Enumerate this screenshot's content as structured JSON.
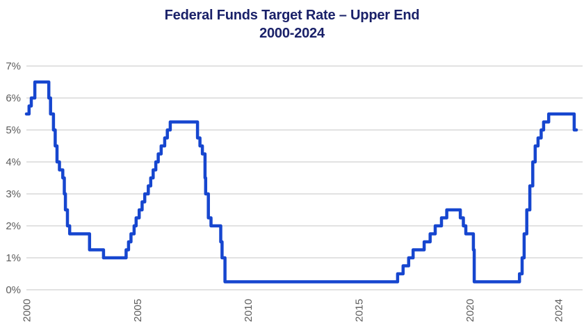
{
  "page": {
    "background": "#ffffff"
  },
  "title": {
    "line1": "Federal Funds Target Rate – Upper End",
    "line2": "2000-2024",
    "color": "#1a2169"
  },
  "chart_data": {
    "type": "line",
    "style": "step-after",
    "title": "Federal Funds Target Rate – Upper End",
    "subtitle": "2000-2024",
    "series_name": "Federal Funds Target Rate (Upper End, %)",
    "line_color": "#1646cf",
    "gridline_color": "#d9d9d9",
    "tick_label_color": "#5c5c5c",
    "grid": true,
    "legend": "none",
    "x_ticks": [
      2000,
      2005,
      2010,
      2015,
      2020,
      2024
    ],
    "y_ticks": [
      "0%",
      "1%",
      "2%",
      "3%",
      "4%",
      "5%",
      "6%",
      "7%"
    ],
    "x_range": [
      2000,
      2025.1
    ],
    "y_range": [
      0,
      7
    ],
    "x_end": 2024.82,
    "points": [
      [
        2000.0,
        5.5
      ],
      [
        2000.12,
        5.75
      ],
      [
        2000.22,
        6.0
      ],
      [
        2000.38,
        6.5
      ],
      [
        2001.01,
        6.0
      ],
      [
        2001.09,
        5.5
      ],
      [
        2001.22,
        5.0
      ],
      [
        2001.3,
        4.5
      ],
      [
        2001.38,
        4.0
      ],
      [
        2001.49,
        3.75
      ],
      [
        2001.64,
        3.5
      ],
      [
        2001.71,
        3.0
      ],
      [
        2001.76,
        2.5
      ],
      [
        2001.85,
        2.0
      ],
      [
        2001.95,
        1.75
      ],
      [
        2002.85,
        1.25
      ],
      [
        2003.48,
        1.0
      ],
      [
        2004.5,
        1.25
      ],
      [
        2004.61,
        1.5
      ],
      [
        2004.72,
        1.75
      ],
      [
        2004.86,
        2.0
      ],
      [
        2004.95,
        2.25
      ],
      [
        2005.09,
        2.5
      ],
      [
        2005.22,
        2.75
      ],
      [
        2005.34,
        3.0
      ],
      [
        2005.5,
        3.25
      ],
      [
        2005.61,
        3.5
      ],
      [
        2005.72,
        3.75
      ],
      [
        2005.84,
        4.0
      ],
      [
        2005.95,
        4.25
      ],
      [
        2006.08,
        4.5
      ],
      [
        2006.24,
        4.75
      ],
      [
        2006.36,
        5.0
      ],
      [
        2006.49,
        5.25
      ],
      [
        2007.72,
        4.75
      ],
      [
        2007.83,
        4.5
      ],
      [
        2007.94,
        4.25
      ],
      [
        2008.06,
        3.5
      ],
      [
        2008.09,
        3.0
      ],
      [
        2008.21,
        2.25
      ],
      [
        2008.33,
        2.0
      ],
      [
        2008.77,
        1.5
      ],
      [
        2008.83,
        1.0
      ],
      [
        2008.96,
        0.25
      ],
      [
        2016.75,
        0.5
      ],
      [
        2017.0,
        0.75
      ],
      [
        2017.25,
        1.0
      ],
      [
        2017.45,
        1.25
      ],
      [
        2017.95,
        1.5
      ],
      [
        2018.22,
        1.75
      ],
      [
        2018.45,
        2.0
      ],
      [
        2018.73,
        2.25
      ],
      [
        2018.97,
        2.5
      ],
      [
        2019.58,
        2.25
      ],
      [
        2019.72,
        2.0
      ],
      [
        2019.83,
        1.75
      ],
      [
        2020.17,
        1.25
      ],
      [
        2020.21,
        0.25
      ],
      [
        2022.25,
        0.5
      ],
      [
        2022.37,
        1.0
      ],
      [
        2022.46,
        1.75
      ],
      [
        2022.58,
        2.5
      ],
      [
        2022.72,
        3.25
      ],
      [
        2022.85,
        4.0
      ],
      [
        2022.96,
        4.5
      ],
      [
        2023.09,
        4.75
      ],
      [
        2023.23,
        5.0
      ],
      [
        2023.34,
        5.25
      ],
      [
        2023.57,
        5.5
      ],
      [
        2024.72,
        5.0
      ]
    ]
  }
}
